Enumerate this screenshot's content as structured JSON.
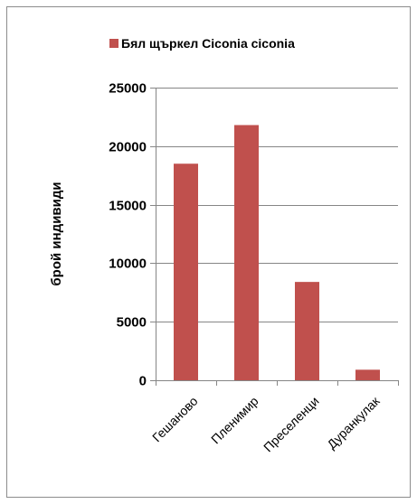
{
  "chart_data": {
    "type": "bar",
    "categories": [
      "Гешаново",
      "Пленимир",
      "Преселенци",
      "Дуранкулак"
    ],
    "series": [
      {
        "name": "Бял щъркел Ciconia ciconia",
        "values": [
          18500,
          21800,
          8400,
          900
        ]
      }
    ],
    "xlabel": "",
    "ylabel": "брой индивиди",
    "ylim": [
      0,
      25000
    ],
    "yticks": [
      0,
      5000,
      10000,
      15000,
      20000,
      25000
    ],
    "grid": true,
    "legend_position": "top",
    "colors": {
      "bar": "#C0504D",
      "grid": "#868686",
      "axis": "#868686"
    }
  }
}
